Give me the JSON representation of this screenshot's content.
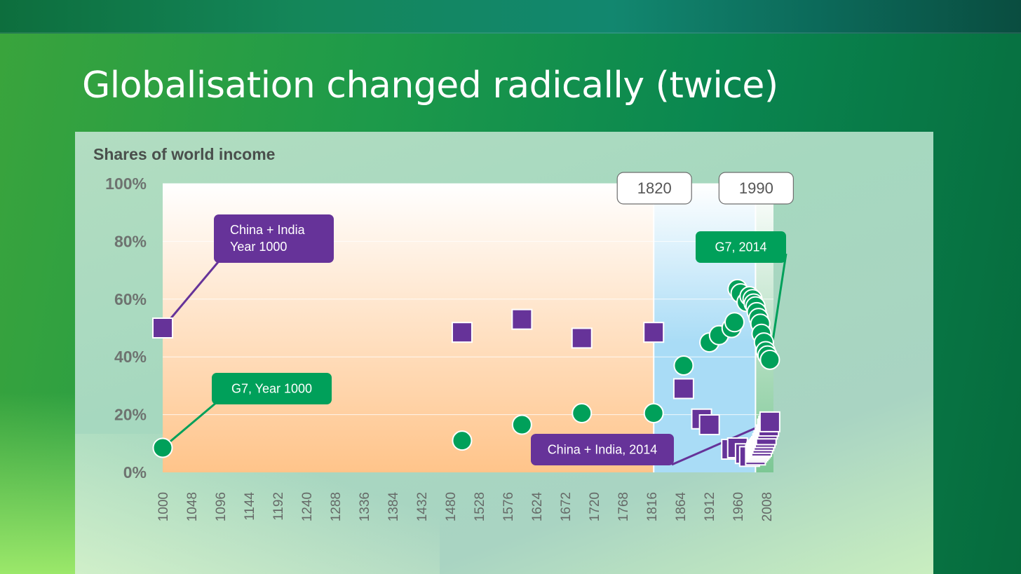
{
  "slide": {
    "title": "Globalisation changed radically (twice)"
  },
  "colors": {
    "g7": "#00a05a",
    "china_india": "#663399",
    "pre_1820_top": "#ffffff",
    "pre_1820_bottom": "#ffc48a",
    "era_1820_1990": "#a9dcf6",
    "era_post_1990": "#7cc794"
  },
  "chart_data": {
    "type": "scatter",
    "title": "Shares of world income",
    "xlabel": "",
    "ylabel": "",
    "xlim": [
      1000,
      2020
    ],
    "ylim": [
      0,
      1
    ],
    "y_tick_labels": [
      "0%",
      "20%",
      "40%",
      "60%",
      "80%",
      "100%"
    ],
    "y_ticks": [
      0,
      0.2,
      0.4,
      0.6,
      0.8,
      1.0
    ],
    "x_ticks": [
      1000,
      1048,
      1096,
      1144,
      1192,
      1240,
      1288,
      1336,
      1384,
      1432,
      1480,
      1528,
      1576,
      1624,
      1672,
      1720,
      1768,
      1816,
      1864,
      1912,
      1960,
      2008
    ],
    "grid": true,
    "eras": [
      {
        "label": "1820",
        "start": 1820,
        "end": 1990
      },
      {
        "label": "1990",
        "start": 1990,
        "end": 2020
      }
    ],
    "series": [
      {
        "key": "china_india",
        "marker": "square",
        "points": [
          [
            1000,
            0.5
          ],
          [
            1500,
            0.485
          ],
          [
            1600,
            0.53
          ],
          [
            1700,
            0.465
          ],
          [
            1820,
            0.485
          ],
          [
            1870,
            0.29
          ],
          [
            1900,
            0.185
          ],
          [
            1913,
            0.165
          ],
          [
            1950,
            0.08
          ],
          [
            1960,
            0.085
          ],
          [
            1973,
            0.065
          ],
          [
            1980,
            0.055
          ],
          [
            1990,
            0.06
          ],
          [
            1992,
            0.07
          ],
          [
            1994,
            0.075
          ],
          [
            1996,
            0.08
          ],
          [
            1998,
            0.085
          ],
          [
            2000,
            0.09
          ],
          [
            2002,
            0.1
          ],
          [
            2004,
            0.11
          ],
          [
            2006,
            0.12
          ],
          [
            2008,
            0.13
          ],
          [
            2010,
            0.15
          ],
          [
            2012,
            0.16
          ],
          [
            2014,
            0.175
          ]
        ]
      },
      {
        "key": "g7",
        "marker": "circle",
        "points": [
          [
            1000,
            0.085
          ],
          [
            1500,
            0.11
          ],
          [
            1600,
            0.165
          ],
          [
            1700,
            0.205
          ],
          [
            1820,
            0.205
          ],
          [
            1870,
            0.37
          ],
          [
            1913,
            0.45
          ],
          [
            1929,
            0.475
          ],
          [
            1950,
            0.5
          ],
          [
            1955,
            0.52
          ],
          [
            1960,
            0.635
          ],
          [
            1965,
            0.62
          ],
          [
            1975,
            0.59
          ],
          [
            1980,
            0.61
          ],
          [
            1985,
            0.6
          ],
          [
            1987,
            0.585
          ],
          [
            1990,
            0.575
          ],
          [
            1992,
            0.555
          ],
          [
            1995,
            0.535
          ],
          [
            1998,
            0.515
          ],
          [
            2000,
            0.48
          ],
          [
            2004,
            0.45
          ],
          [
            2007,
            0.42
          ],
          [
            2010,
            0.405
          ],
          [
            2014,
            0.39
          ]
        ]
      }
    ],
    "annotations": [
      {
        "key": "ci1000",
        "series": "china_india",
        "text_lines": [
          "China + India",
          "Year 1000"
        ],
        "target": [
          1000,
          0.5
        ]
      },
      {
        "key": "g71000",
        "series": "g7",
        "text_lines": [
          "G7, Year 1000"
        ],
        "target": [
          1000,
          0.085
        ]
      },
      {
        "key": "g72014",
        "series": "g7",
        "text_lines": [
          "G7, 2014"
        ],
        "target": [
          2014,
          0.39
        ]
      },
      {
        "key": "ci2014",
        "series": "china_india",
        "text_lines": [
          "China + India, 2014"
        ],
        "target": [
          2014,
          0.175
        ]
      }
    ]
  }
}
